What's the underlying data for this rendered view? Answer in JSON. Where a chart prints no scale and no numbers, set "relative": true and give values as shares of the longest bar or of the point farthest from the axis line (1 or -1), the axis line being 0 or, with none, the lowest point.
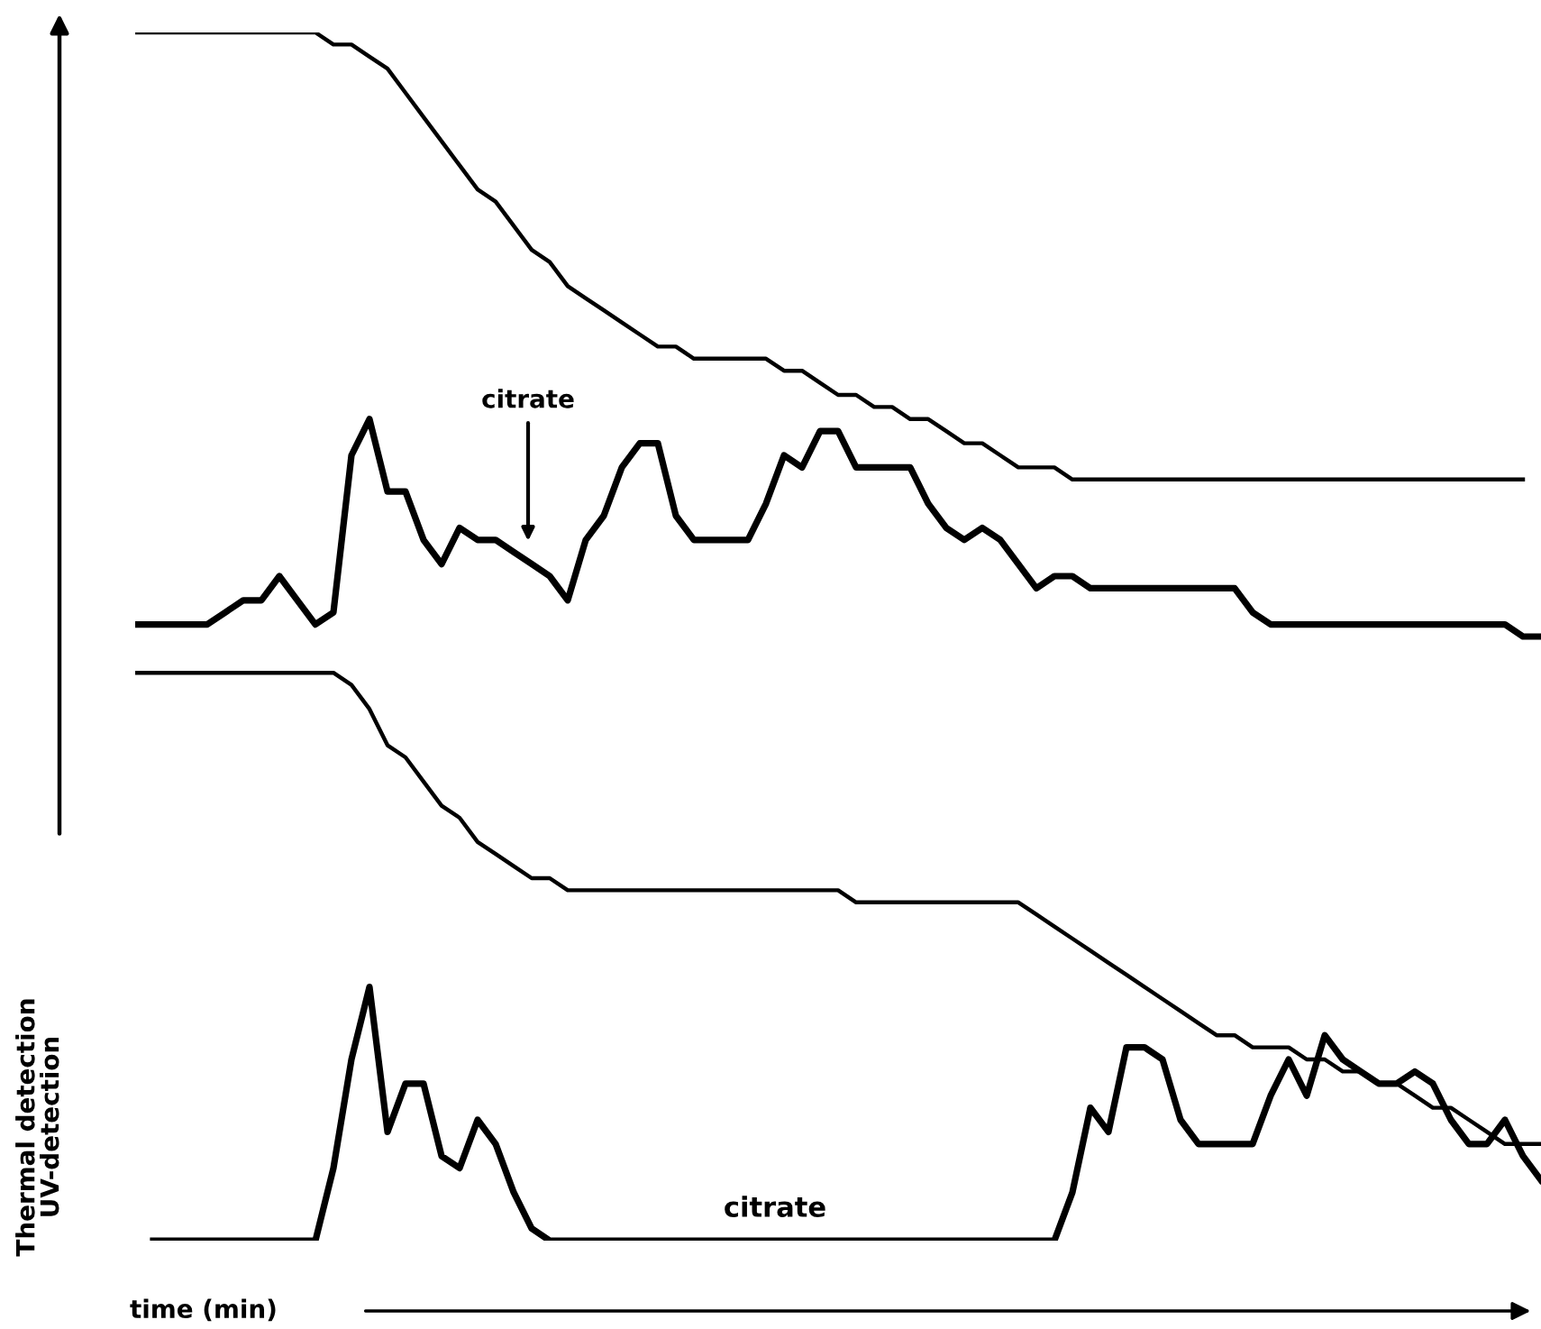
{
  "chart_data": {
    "type": "line",
    "relative": true,
    "xlabel": "time (min)",
    "ylabel": "Thermal detection\nUV-detection",
    "annotations": [
      "citrate",
      "citrate"
    ],
    "marker": "none",
    "line_style": "solid",
    "grid": false,
    "legend": false,
    "categories": [
      null,
      null,
      null,
      null,
      null,
      null,
      null,
      null,
      null,
      null,
      null,
      null,
      null,
      null,
      null,
      null,
      null,
      null,
      null,
      null,
      null,
      null,
      null,
      null,
      null,
      null,
      null,
      null,
      null,
      null,
      null,
      null,
      null,
      null,
      null,
      null,
      null,
      null,
      null,
      null,
      null,
      null,
      null,
      null,
      null,
      null,
      null,
      null,
      null,
      null,
      null,
      null,
      null,
      null,
      null,
      null,
      null,
      null,
      null,
      null,
      null,
      null,
      null,
      null,
      null,
      null,
      null,
      null,
      null,
      null,
      null,
      null,
      null,
      null,
      null,
      null,
      null,
      null,
      null
    ],
    "series": [
      {
        "color": "#000000",
        "values": [
          1.0,
          1.0,
          1.0,
          1.0,
          1.0,
          1.0,
          1.0,
          1.0,
          1.0,
          1.0,
          1.0,
          0.99,
          0.99,
          0.98,
          0.97,
          0.95,
          0.93,
          0.91,
          0.89,
          0.87,
          0.86,
          0.84,
          0.82,
          0.81,
          0.79,
          0.78,
          0.77,
          0.76,
          0.75,
          0.74,
          0.74,
          0.73,
          0.73,
          0.73,
          0.73,
          0.73,
          0.72,
          0.72,
          0.71,
          0.7,
          0.7,
          0.69,
          0.69,
          0.68,
          0.68,
          0.67,
          0.66,
          0.66,
          0.65,
          0.64,
          0.64,
          0.64,
          0.63,
          0.63,
          0.63,
          0.63,
          0.63,
          0.63,
          0.63,
          0.63,
          0.63,
          0.63,
          0.63,
          0.63,
          0.63,
          0.63,
          0.63,
          0.63,
          0.63,
          0.63,
          0.63,
          0.63,
          0.63,
          0.63,
          0.63,
          0.63,
          0.63,
          0.63,
          null
        ]
      },
      {
        "color": "#000000",
        "values": [
          0.51,
          0.51,
          0.51,
          0.51,
          0.51,
          0.52,
          0.53,
          0.53,
          0.55,
          0.53,
          0.51,
          0.52,
          0.65,
          0.68,
          0.62,
          0.62,
          0.58,
          0.56,
          0.59,
          0.58,
          0.58,
          0.57,
          0.56,
          0.55,
          0.53,
          0.58,
          0.6,
          0.64,
          0.66,
          0.66,
          0.6,
          0.58,
          0.58,
          0.58,
          0.58,
          0.61,
          0.65,
          0.64,
          0.67,
          0.67,
          0.64,
          0.64,
          0.64,
          0.64,
          0.61,
          0.59,
          0.58,
          0.59,
          0.58,
          0.56,
          0.54,
          0.55,
          0.55,
          0.54,
          0.54,
          0.54,
          0.54,
          0.54,
          0.54,
          0.54,
          0.54,
          0.54,
          0.52,
          0.51,
          0.51,
          0.51,
          0.51,
          0.51,
          0.51,
          0.51,
          0.51,
          0.51,
          0.51,
          0.51,
          0.51,
          0.51,
          0.51,
          0.5,
          0.5
        ]
      },
      {
        "color": "#000000",
        "values": [
          0.47,
          0.47,
          0.47,
          0.47,
          0.47,
          0.47,
          0.47,
          0.47,
          0.47,
          0.47,
          0.47,
          0.47,
          0.46,
          0.44,
          0.41,
          0.4,
          0.38,
          0.36,
          0.35,
          0.33,
          0.32,
          0.31,
          0.3,
          0.3,
          0.29,
          0.29,
          0.29,
          0.29,
          0.29,
          0.29,
          0.29,
          0.29,
          0.29,
          0.29,
          0.29,
          0.29,
          0.29,
          0.29,
          0.29,
          0.29,
          0.28,
          0.28,
          0.28,
          0.28,
          0.28,
          0.28,
          0.28,
          0.28,
          0.28,
          0.28,
          0.27,
          0.26,
          0.25,
          0.24,
          0.23,
          0.22,
          0.21,
          0.2,
          0.19,
          0.18,
          0.17,
          0.17,
          0.16,
          0.16,
          0.16,
          0.15,
          0.15,
          0.14,
          0.14,
          0.13,
          0.13,
          0.12,
          0.11,
          0.11,
          0.1,
          0.09,
          0.08,
          0.08,
          0.08
        ]
      },
      {
        "color": "#000000",
        "values": [
          null,
          0,
          0,
          0,
          0,
          0,
          0,
          0,
          0,
          0,
          0,
          0.06,
          0.15,
          0.21,
          0.09,
          0.13,
          0.13,
          0.07,
          0.06,
          0.1,
          0.08,
          0.04,
          0.01,
          0,
          0,
          0,
          0,
          0,
          0,
          0,
          0,
          0,
          0,
          0,
          0,
          0,
          0,
          0,
          0,
          0,
          0,
          0,
          0,
          0,
          0,
          0,
          0,
          0,
          0,
          0,
          0,
          0,
          0.04,
          0.11,
          0.09,
          0.16,
          0.16,
          0.15,
          0.1,
          0.08,
          0.08,
          0.08,
          0.08,
          0.12,
          0.15,
          0.12,
          0.17,
          0.15,
          0.14,
          0.13,
          0.13,
          0.14,
          0.13,
          0.1,
          0.08,
          0.08,
          0.1,
          0.07,
          0.05
        ]
      }
    ]
  }
}
